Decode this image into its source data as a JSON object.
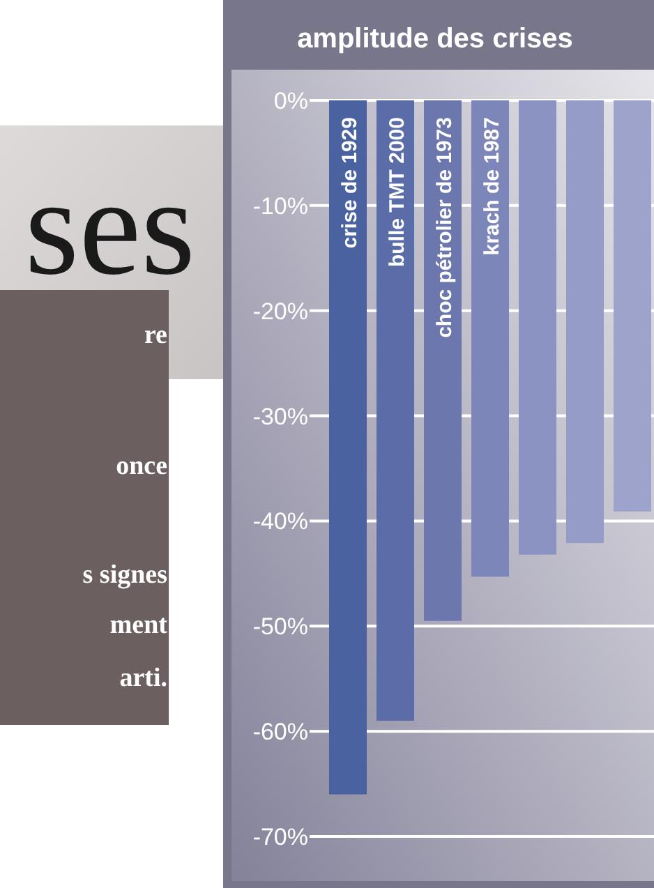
{
  "chart_data": {
    "type": "bar",
    "title": "amplitude des crises",
    "categories": [
      "crise de 1929",
      "bulle TMT 2000",
      "choc pétrolier de 1973",
      "krach de 1987",
      null,
      null,
      null
    ],
    "values": [
      -66,
      -59,
      -49.5,
      -45.3,
      -43.2,
      -42.1,
      -39.1
    ],
    "colors": [
      "#4a62a0",
      "#5a6da8",
      "#6c78ad",
      "#7d86b8",
      "#8b93c2",
      "#959cc8",
      "#9da3cb"
    ],
    "ylim": [
      -70,
      0
    ],
    "yticks": [
      {
        "value": 0,
        "label": "0%"
      },
      {
        "value": -10,
        "label": "-10%"
      },
      {
        "value": -20,
        "label": "-20%"
      },
      {
        "value": -30,
        "label": "-30%"
      },
      {
        "value": -40,
        "label": "-40%"
      },
      {
        "value": -50,
        "label": "-50%"
      },
      {
        "value": -60,
        "label": "-60%"
      },
      {
        "value": -70,
        "label": "-70%"
      }
    ],
    "grid": "y",
    "annotations": [
      "ses",
      "re",
      "once",
      "s signes",
      "ment",
      "arti."
    ]
  }
}
